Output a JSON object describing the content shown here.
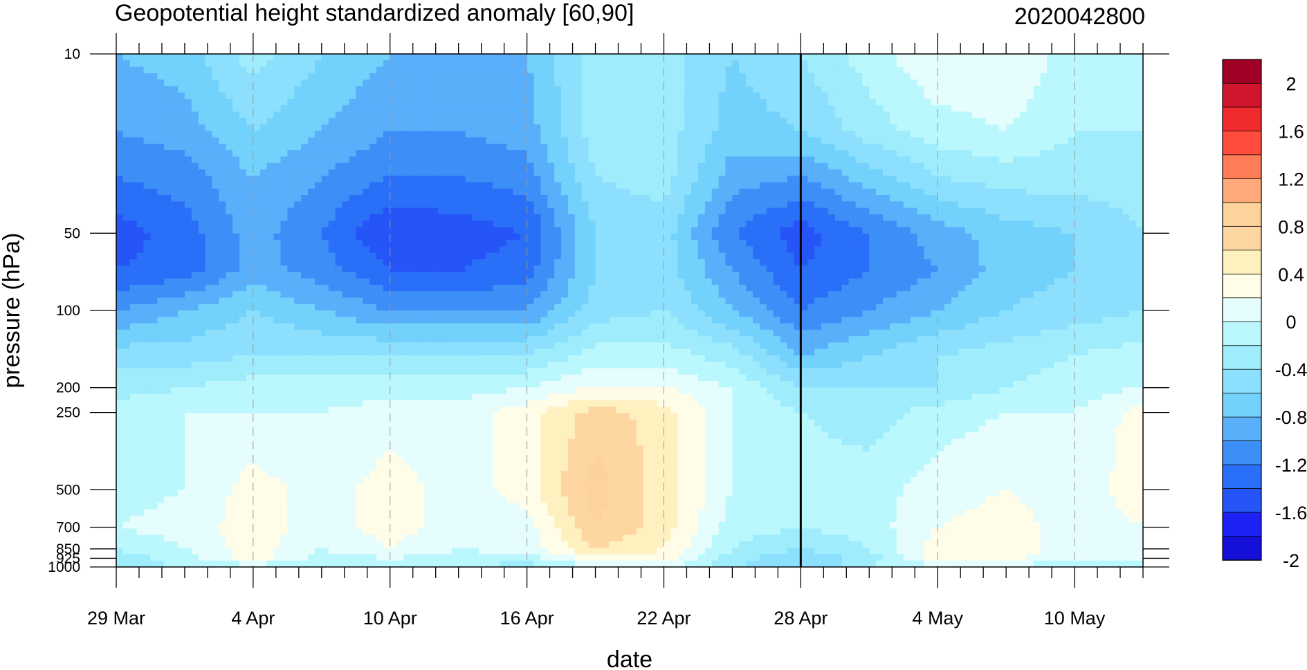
{
  "chart_data": {
    "type": "heatmap",
    "title": "Geopotential height standardized anomaly [60,90]",
    "subtitle": "2020042800",
    "xlabel": "date",
    "ylabel": "pressure (hPa)",
    "x_start": "29 Mar",
    "x_end": "13 May",
    "x_ticks": [
      {
        "day": 0,
        "label": "29 Mar"
      },
      {
        "day": 6,
        "label": "4 Apr"
      },
      {
        "day": 12,
        "label": "10 Apr"
      },
      {
        "day": 18,
        "label": "16 Apr"
      },
      {
        "day": 24,
        "label": "22 Apr"
      },
      {
        "day": 30,
        "label": "28 Apr"
      },
      {
        "day": 36,
        "label": "4 May"
      },
      {
        "day": 42,
        "label": "10 May"
      }
    ],
    "marker_date": "28 Apr",
    "y_scale": "log",
    "y_reversed": true,
    "ylim": [
      1000,
      10
    ],
    "y_ticks": [
      {
        "value": 10,
        "label": "10"
      },
      {
        "value": 50,
        "label": "50"
      },
      {
        "value": 100,
        "label": "100"
      },
      {
        "value": 200,
        "label": "200"
      },
      {
        "value": 250,
        "label": "250"
      },
      {
        "value": 500,
        "label": "500"
      },
      {
        "value": 700,
        "label": "700"
      },
      {
        "value": 850,
        "label": "850"
      },
      {
        "value": 925,
        "label": "925"
      },
      {
        "value": 1000,
        "label": "1000"
      }
    ],
    "levels": [
      1000,
      925,
      850,
      700,
      500,
      250,
      200,
      150,
      100,
      70,
      50,
      30,
      20,
      10
    ],
    "days": [
      0,
      3,
      6,
      9,
      12,
      15,
      18,
      21,
      24,
      27,
      30,
      33,
      36,
      39,
      42,
      45
    ],
    "values": [
      [
        -0.5,
        -0.4,
        -0.3,
        -0.4,
        -0.3,
        -0.4,
        -0.5,
        -0.2,
        -0.1,
        -0.6,
        -0.8,
        -0.4,
        -0.3,
        -0.3,
        -0.3,
        -0.3
      ],
      [
        -0.5,
        -0.3,
        0.1,
        -0.3,
        -0.2,
        -0.3,
        -0.3,
        0.1,
        0.1,
        -0.5,
        -0.8,
        -0.5,
        0.1,
        0.1,
        -0.2,
        -0.2
      ],
      [
        -0.4,
        -0.2,
        0.1,
        -0.2,
        0.0,
        -0.2,
        -0.1,
        0.4,
        0.2,
        -0.4,
        -0.6,
        -0.4,
        0.1,
        0.1,
        -0.1,
        -0.1
      ],
      [
        -0.2,
        -0.1,
        0.1,
        -0.1,
        0.1,
        -0.1,
        -0.1,
        0.6,
        0.3,
        -0.3,
        -0.4,
        -0.3,
        0.0,
        0.1,
        -0.1,
        0.0
      ],
      [
        -0.3,
        -0.2,
        0.1,
        -0.1,
        0.1,
        -0.1,
        0.1,
        0.7,
        0.3,
        -0.2,
        -0.3,
        -0.3,
        -0.1,
        0.0,
        -0.1,
        0.1
      ],
      [
        -0.3,
        -0.2,
        -0.2,
        -0.2,
        -0.1,
        -0.1,
        0.1,
        0.5,
        0.3,
        -0.2,
        -0.4,
        -0.5,
        -0.3,
        -0.2,
        -0.2,
        0.1
      ],
      [
        -0.5,
        -0.4,
        -0.3,
        -0.3,
        -0.3,
        -0.3,
        -0.2,
        0.0,
        0.0,
        -0.2,
        -0.6,
        -0.6,
        -0.6,
        -0.4,
        -0.3,
        -0.2
      ],
      [
        -0.7,
        -0.7,
        -0.6,
        -0.6,
        -0.6,
        -0.6,
        -0.6,
        -0.3,
        -0.3,
        -0.5,
        -1.0,
        -0.8,
        -0.6,
        -0.5,
        -0.4,
        -0.3
      ],
      [
        -1.2,
        -1.0,
        -0.8,
        -1.0,
        -1.2,
        -1.2,
        -1.2,
        -0.7,
        -0.6,
        -1.0,
        -1.4,
        -1.2,
        -1.0,
        -0.8,
        -0.7,
        -0.6
      ],
      [
        -1.6,
        -1.5,
        -1.1,
        -1.3,
        -1.6,
        -1.6,
        -1.5,
        -0.8,
        -0.7,
        -1.2,
        -1.6,
        -1.4,
        -1.2,
        -0.9,
        -0.8,
        -0.6
      ],
      [
        -1.7,
        -1.5,
        -1.1,
        -1.4,
        -1.8,
        -1.7,
        -1.6,
        -0.8,
        -0.7,
        -1.4,
        -1.7,
        -1.4,
        -1.1,
        -0.9,
        -0.8,
        -0.6
      ],
      [
        -1.4,
        -1.3,
        -1.0,
        -1.2,
        -1.4,
        -1.4,
        -1.3,
        -0.6,
        -0.5,
        -1.1,
        -1.2,
        -0.9,
        -0.6,
        -0.5,
        -0.5,
        -0.5
      ],
      [
        -1.2,
        -1.1,
        -0.8,
        -1.0,
        -1.2,
        -1.2,
        -1.1,
        -0.5,
        -0.5,
        -0.9,
        -0.8,
        -0.5,
        -0.3,
        -0.2,
        -0.4,
        -0.4
      ],
      [
        -1.0,
        -0.9,
        -0.5,
        -0.8,
        -1.0,
        -1.0,
        -1.0,
        -0.5,
        -0.5,
        -0.8,
        -0.6,
        -0.3,
        0.0,
        0.0,
        -0.3,
        -0.3
      ]
    ],
    "colorbar": {
      "labels": [
        "2",
        "1.6",
        "1.2",
        "0.8",
        "0.4",
        "0",
        "-0.4",
        "-0.8",
        "-1.2",
        "-1.6",
        "-2"
      ],
      "colors": [
        "#a00025",
        "#d0152d",
        "#ef2b2d",
        "#ff4c3c",
        "#ff7d56",
        "#ffa87a",
        "#fdd29b",
        "#fdd6a2",
        "#fff0c0",
        "#fffce8",
        "#e6fdfd",
        "#baf8fd",
        "#9fecfd",
        "#8ce0fd",
        "#73d2fb",
        "#5aaffb",
        "#3d8ff7",
        "#2a6ff7",
        "#2554f7",
        "#1e22f4",
        "#1510d8"
      ]
    }
  }
}
